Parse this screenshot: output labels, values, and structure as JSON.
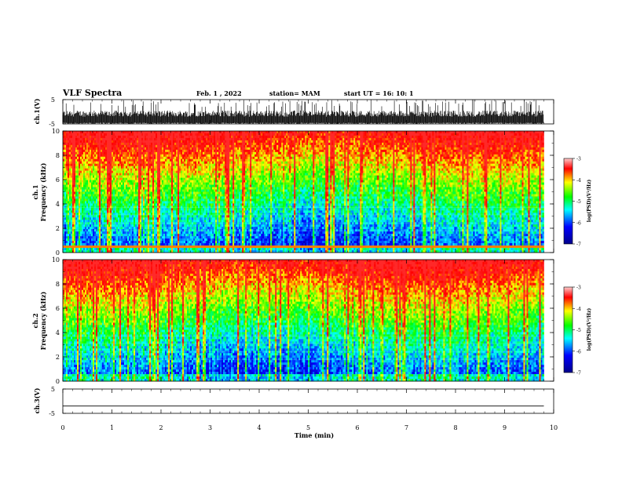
{
  "header": {
    "title": "VLF Spectra",
    "date": "Feb. 1 , 2022",
    "station": "station= MAM",
    "start_ut": "start UT = 16: 10: 1"
  },
  "chart_data": [
    {
      "type": "line",
      "panel": "ch1-waveform",
      "ylabel": "ch.1(V)",
      "yticks": [
        "5",
        "-5"
      ],
      "ylim": [
        -5,
        5
      ],
      "xlim": [
        0,
        10
      ],
      "x_extent": [
        0,
        9.8
      ],
      "note_signal": "dense impulsive waveform filling roughly -5 to 0 V with spikes to +5 V"
    },
    {
      "type": "heatmap",
      "panel": "ch1-spectrogram",
      "ylabel": "ch.1 Frequency (kHz)",
      "ylabel_line1": "ch.1",
      "ylabel_line2": "Frequency (kHz)",
      "yticks": [
        "0",
        "2",
        "4",
        "6",
        "8",
        "10"
      ],
      "ylim": [
        0,
        10
      ],
      "xlim": [
        0,
        10
      ],
      "x_extent": [
        0,
        9.8
      ],
      "colorbar": {
        "label": "log(PSD)(V²/Hz)",
        "ticks": [
          "-3",
          "-4",
          "-5",
          "-6",
          "-7"
        ],
        "range": [
          -7,
          -3
        ]
      },
      "colors": [
        "#00008b",
        "#0000ff",
        "#00ffff",
        "#00ff00",
        "#ffff00",
        "#ff0000"
      ]
    },
    {
      "type": "heatmap",
      "panel": "ch2-spectrogram",
      "ylabel": "ch.2 Frequency (kHz)",
      "ylabel_line1": "ch.2",
      "ylabel_line2": "Frequency (kHz)",
      "yticks": [
        "0",
        "2",
        "4",
        "6",
        "8",
        "10"
      ],
      "ylim": [
        0,
        10
      ],
      "xlim": [
        0,
        10
      ],
      "x_extent": [
        0,
        9.8
      ],
      "colorbar": {
        "label": "log(PSD)(V²/Hz)",
        "ticks": [
          "-3",
          "-4",
          "-5",
          "-6",
          "-7"
        ],
        "range": [
          -7,
          -3
        ]
      },
      "colors": [
        "#00008b",
        "#0000ff",
        "#00ffff",
        "#00ff00",
        "#ffff00",
        "#ff0000"
      ]
    },
    {
      "type": "line",
      "panel": "ch3-waveform",
      "ylabel": "ch.3(V)",
      "yticks": [
        "5",
        "-5"
      ],
      "ylim": [
        -5,
        5
      ],
      "xlim": [
        0,
        10
      ],
      "x_extent": [
        0,
        9.8
      ],
      "x": [
        0,
        9.8
      ],
      "y": [
        -2,
        -2
      ]
    }
  ],
  "xaxis": {
    "label": "Time (min)",
    "ticks": [
      "0",
      "1",
      "2",
      "3",
      "4",
      "5",
      "6",
      "7",
      "8",
      "9",
      "10"
    ]
  }
}
